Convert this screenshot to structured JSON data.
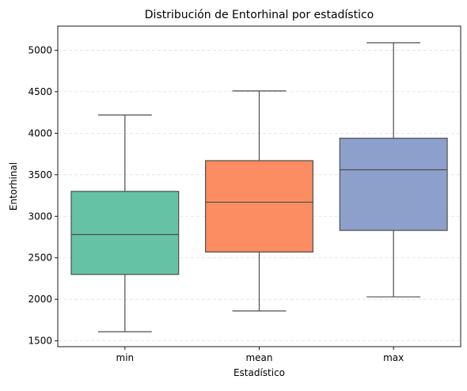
{
  "chart_data": {
    "type": "box",
    "title": "Distribución de Entorhinal por estadístico",
    "xlabel": "Estadístico",
    "ylabel": "Entorhinal",
    "categories": [
      "min",
      "mean",
      "max"
    ],
    "boxes": [
      {
        "category": "min",
        "whisker_low": 1610,
        "q1": 2300,
        "median": 2780,
        "q3": 3300,
        "whisker_high": 4220,
        "color": "#66c2a5"
      },
      {
        "category": "mean",
        "whisker_low": 1860,
        "q1": 2570,
        "median": 3170,
        "q3": 3670,
        "whisker_high": 4510,
        "color": "#fc8d62"
      },
      {
        "category": "max",
        "whisker_low": 2030,
        "q1": 2830,
        "median": 3560,
        "q3": 3940,
        "whisker_high": 5090,
        "color": "#8da0cb"
      }
    ],
    "yticks": [
      1500,
      2000,
      2500,
      3000,
      3500,
      4000,
      4500,
      5000
    ],
    "ylim": [
      1430,
      5290
    ],
    "grid": "horizontal-dashed",
    "legend": "none"
  }
}
